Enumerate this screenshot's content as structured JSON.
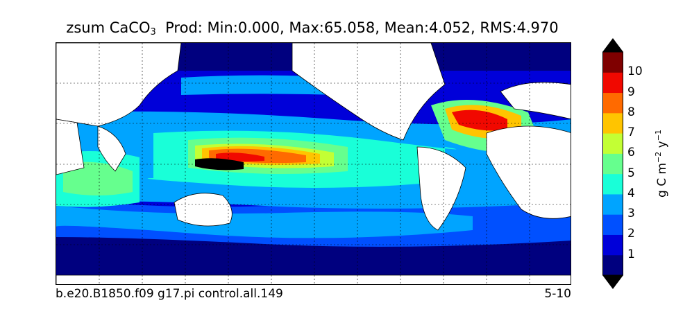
{
  "title": {
    "variable": "zsum CaCO",
    "subscript": "3",
    "stats": "Prod: Min:0.000, Max:65.058, Mean:4.052, RMS:4.970"
  },
  "footer": {
    "case_name": "b.e20.B1850.f09 g17.pi control.all.149",
    "date_range": "5-10"
  },
  "colorbar": {
    "label_base": "g C m",
    "label_exp1": "−2",
    "label_mid": " y",
    "label_exp2": "−1",
    "ticks": [
      "1",
      "2",
      "3",
      "4",
      "5",
      "6",
      "7",
      "8",
      "9",
      "10"
    ],
    "colors": [
      "#00007f",
      "#0000d9",
      "#0050ff",
      "#00a4ff",
      "#19ffd8",
      "#66ff8e",
      "#c3ff34",
      "#ffc400",
      "#ff6a00",
      "#f10800",
      "#7f0000"
    ],
    "extend_low_color": "#000000",
    "extend_high_color": "#000000"
  },
  "map_legend": {
    "land_color": "#ffffff",
    "grid_style": "dotted"
  }
}
